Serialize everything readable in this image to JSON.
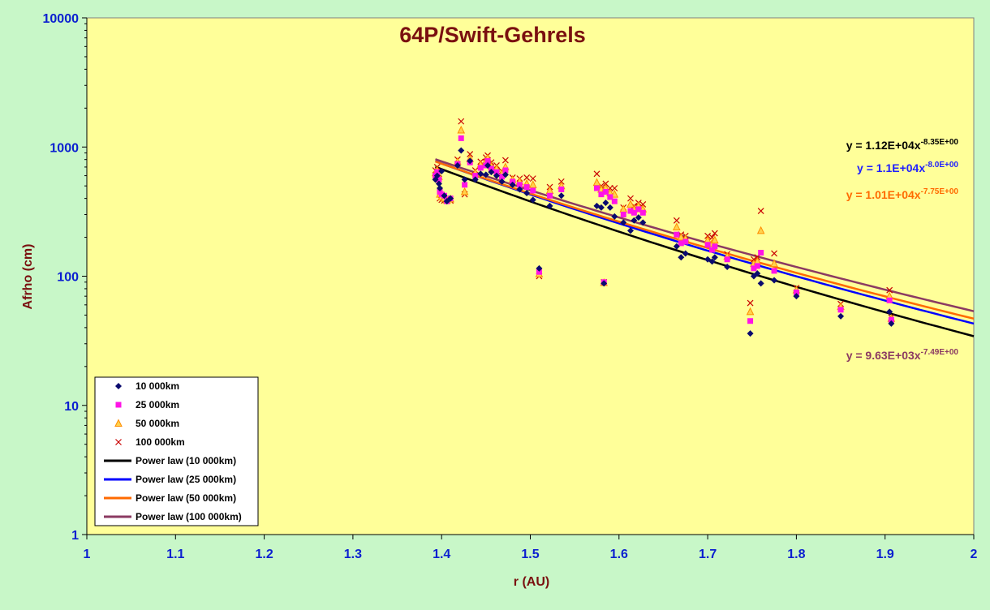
{
  "chart_data": {
    "type": "scatter",
    "title": "64P/Swift-Gehrels",
    "xlabel": "r (AU)",
    "ylabel": "Afrho (cm)",
    "xlim": [
      1,
      2
    ],
    "ylim": [
      1,
      10000
    ],
    "yscale": "log",
    "x_ticks": [
      "1",
      "1.1",
      "1.2",
      "1.3",
      "1.4",
      "1.5",
      "1.6",
      "1.7",
      "1.8",
      "1.9",
      "2"
    ],
    "y_ticks": [
      "1",
      "10",
      "100",
      "1000",
      "10000"
    ],
    "grid": false,
    "legend_position": "bottom-left",
    "colors": {
      "outer_background": "#c8f7c8",
      "plot_background": "#ffff99",
      "axis_tick_color": "#0b1fd0",
      "title_color": "#7a1010"
    },
    "series": [
      {
        "name": "10 000km",
        "marker": "diamond",
        "color": "#0a0a6e",
        "points": [
          [
            1.393,
            560
          ],
          [
            1.395,
            600
          ],
          [
            1.397,
            520
          ],
          [
            1.398,
            480
          ],
          [
            1.4,
            650
          ],
          [
            1.403,
            420
          ],
          [
            1.406,
            380
          ],
          [
            1.41,
            400
          ],
          [
            1.418,
            720
          ],
          [
            1.422,
            940
          ],
          [
            1.426,
            560
          ],
          [
            1.432,
            780
          ],
          [
            1.438,
            560
          ],
          [
            1.444,
            620
          ],
          [
            1.45,
            610
          ],
          [
            1.452,
            720
          ],
          [
            1.456,
            640
          ],
          [
            1.462,
            600
          ],
          [
            1.468,
            540
          ],
          [
            1.472,
            610
          ],
          [
            1.48,
            510
          ],
          [
            1.488,
            470
          ],
          [
            1.496,
            440
          ],
          [
            1.503,
            390
          ],
          [
            1.51,
            115
          ],
          [
            1.522,
            350
          ],
          [
            1.535,
            420
          ],
          [
            1.575,
            350
          ],
          [
            1.58,
            340
          ],
          [
            1.583,
            88
          ],
          [
            1.585,
            370
          ],
          [
            1.59,
            340
          ],
          [
            1.595,
            290
          ],
          [
            1.605,
            260
          ],
          [
            1.613,
            225
          ],
          [
            1.617,
            270
          ],
          [
            1.622,
            285
          ],
          [
            1.627,
            260
          ],
          [
            1.665,
            170
          ],
          [
            1.67,
            140
          ],
          [
            1.675,
            150
          ],
          [
            1.7,
            135
          ],
          [
            1.705,
            130
          ],
          [
            1.708,
            140
          ],
          [
            1.722,
            118
          ],
          [
            1.748,
            36
          ],
          [
            1.752,
            100
          ],
          [
            1.756,
            105
          ],
          [
            1.76,
            88
          ],
          [
            1.775,
            93
          ],
          [
            1.8,
            70
          ],
          [
            1.85,
            49
          ],
          [
            1.905,
            53
          ],
          [
            1.907,
            43
          ]
        ]
      },
      {
        "name": "25 000km",
        "marker": "square",
        "color": "#ff14e6",
        "points": [
          [
            1.393,
            600
          ],
          [
            1.395,
            640
          ],
          [
            1.397,
            560
          ],
          [
            1.398,
            450
          ],
          [
            1.4,
            430
          ],
          [
            1.403,
            420
          ],
          [
            1.406,
            380
          ],
          [
            1.41,
            400
          ],
          [
            1.418,
            740
          ],
          [
            1.422,
            1170
          ],
          [
            1.426,
            510
          ],
          [
            1.432,
            760
          ],
          [
            1.438,
            600
          ],
          [
            1.444,
            690
          ],
          [
            1.45,
            720
          ],
          [
            1.452,
            780
          ],
          [
            1.456,
            680
          ],
          [
            1.462,
            640
          ],
          [
            1.468,
            590
          ],
          [
            1.472,
            660
          ],
          [
            1.48,
            540
          ],
          [
            1.488,
            510
          ],
          [
            1.496,
            490
          ],
          [
            1.503,
            460
          ],
          [
            1.51,
            108
          ],
          [
            1.522,
            420
          ],
          [
            1.535,
            470
          ],
          [
            1.575,
            480
          ],
          [
            1.58,
            430
          ],
          [
            1.583,
            90
          ],
          [
            1.585,
            450
          ],
          [
            1.59,
            410
          ],
          [
            1.595,
            380
          ],
          [
            1.605,
            300
          ],
          [
            1.613,
            320
          ],
          [
            1.617,
            310
          ],
          [
            1.622,
            330
          ],
          [
            1.627,
            310
          ],
          [
            1.665,
            210
          ],
          [
            1.67,
            180
          ],
          [
            1.675,
            185
          ],
          [
            1.7,
            175
          ],
          [
            1.705,
            160
          ],
          [
            1.708,
            170
          ],
          [
            1.722,
            135
          ],
          [
            1.748,
            45
          ],
          [
            1.752,
            115
          ],
          [
            1.756,
            120
          ],
          [
            1.76,
            152
          ],
          [
            1.775,
            110
          ],
          [
            1.8,
            75
          ],
          [
            1.85,
            55
          ],
          [
            1.905,
            65
          ],
          [
            1.907,
            46
          ]
        ]
      },
      {
        "name": "50 000km",
        "marker": "triangle",
        "color": "#ff8c00",
        "points": [
          [
            1.393,
            630
          ],
          [
            1.395,
            660
          ],
          [
            1.397,
            590
          ],
          [
            1.398,
            430
          ],
          [
            1.4,
            410
          ],
          [
            1.403,
            400
          ],
          [
            1.406,
            385
          ],
          [
            1.41,
            395
          ],
          [
            1.418,
            770
          ],
          [
            1.422,
            1350
          ],
          [
            1.426,
            450
          ],
          [
            1.432,
            810
          ],
          [
            1.438,
            630
          ],
          [
            1.444,
            730
          ],
          [
            1.45,
            780
          ],
          [
            1.452,
            820
          ],
          [
            1.456,
            710
          ],
          [
            1.462,
            680
          ],
          [
            1.468,
            620
          ],
          [
            1.472,
            700
          ],
          [
            1.48,
            560
          ],
          [
            1.488,
            540
          ],
          [
            1.496,
            520
          ],
          [
            1.503,
            510
          ],
          [
            1.51,
            104
          ],
          [
            1.522,
            460
          ],
          [
            1.535,
            500
          ],
          [
            1.575,
            530
          ],
          [
            1.58,
            470
          ],
          [
            1.583,
            89
          ],
          [
            1.585,
            480
          ],
          [
            1.59,
            440
          ],
          [
            1.595,
            430
          ],
          [
            1.605,
            330
          ],
          [
            1.613,
            360
          ],
          [
            1.617,
            330
          ],
          [
            1.622,
            350
          ],
          [
            1.627,
            330
          ],
          [
            1.665,
            240
          ],
          [
            1.67,
            200
          ],
          [
            1.675,
            195
          ],
          [
            1.7,
            190
          ],
          [
            1.705,
            180
          ],
          [
            1.708,
            190
          ],
          [
            1.722,
            142
          ],
          [
            1.748,
            53
          ],
          [
            1.752,
            125
          ],
          [
            1.756,
            130
          ],
          [
            1.76,
            225
          ],
          [
            1.775,
            125
          ],
          [
            1.8,
            78
          ],
          [
            1.85,
            58
          ],
          [
            1.905,
            70
          ],
          [
            1.907,
            47
          ]
        ]
      },
      {
        "name": "100 000km",
        "marker": "x",
        "color": "#c80000",
        "points": [
          [
            1.393,
            660
          ],
          [
            1.395,
            700
          ],
          [
            1.397,
            620
          ],
          [
            1.398,
            400
          ],
          [
            1.4,
            390
          ],
          [
            1.403,
            385
          ],
          [
            1.406,
            395
          ],
          [
            1.41,
            385
          ],
          [
            1.418,
            800
          ],
          [
            1.422,
            1580
          ],
          [
            1.426,
            430
          ],
          [
            1.432,
            880
          ],
          [
            1.438,
            660
          ],
          [
            1.444,
            770
          ],
          [
            1.45,
            830
          ],
          [
            1.452,
            860
          ],
          [
            1.456,
            760
          ],
          [
            1.462,
            720
          ],
          [
            1.468,
            650
          ],
          [
            1.472,
            790
          ],
          [
            1.48,
            580
          ],
          [
            1.488,
            570
          ],
          [
            1.496,
            580
          ],
          [
            1.503,
            570
          ],
          [
            1.51,
            100
          ],
          [
            1.522,
            490
          ],
          [
            1.535,
            540
          ],
          [
            1.575,
            620
          ],
          [
            1.58,
            500
          ],
          [
            1.583,
            90
          ],
          [
            1.585,
            520
          ],
          [
            1.59,
            480
          ],
          [
            1.595,
            480
          ],
          [
            1.605,
            340
          ],
          [
            1.613,
            400
          ],
          [
            1.617,
            350
          ],
          [
            1.622,
            370
          ],
          [
            1.627,
            360
          ],
          [
            1.665,
            270
          ],
          [
            1.67,
            210
          ],
          [
            1.675,
            205
          ],
          [
            1.7,
            205
          ],
          [
            1.705,
            200
          ],
          [
            1.708,
            215
          ],
          [
            1.722,
            148
          ],
          [
            1.748,
            62
          ],
          [
            1.752,
            135
          ],
          [
            1.756,
            140
          ],
          [
            1.76,
            320
          ],
          [
            1.775,
            150
          ],
          [
            1.8,
            81
          ],
          [
            1.85,
            61
          ],
          [
            1.905,
            78
          ],
          [
            1.907,
            48
          ]
        ]
      }
    ],
    "trendlines": [
      {
        "name": "Power law (10 000km)",
        "a": 11200,
        "b": -8.35,
        "color": "#000000",
        "equation": "y = 1.12E+04x",
        "exponent": "-8.35E+00",
        "eq_color": "#000000"
      },
      {
        "name": "Power law (25 000km)",
        "a": 11000,
        "b": -8.0,
        "color": "#0000ff",
        "equation": "y = 1.1E+04x",
        "exponent": "-8.0E+00",
        "eq_color": "#1f1fff"
      },
      {
        "name": "Power law (50 000km)",
        "a": 10100,
        "b": -7.75,
        "color": "#ff6a00",
        "equation": "y = 1.01E+04x",
        "exponent": "-7.75E+00",
        "eq_color": "#ff6a00"
      },
      {
        "name": "Power law (100 000km)",
        "a": 9630,
        "b": -7.49,
        "color": "#8b3a62",
        "equation": "y = 9.63E+03x",
        "exponent": "-7.49E+00",
        "eq_color": "#8b3a62"
      }
    ]
  }
}
